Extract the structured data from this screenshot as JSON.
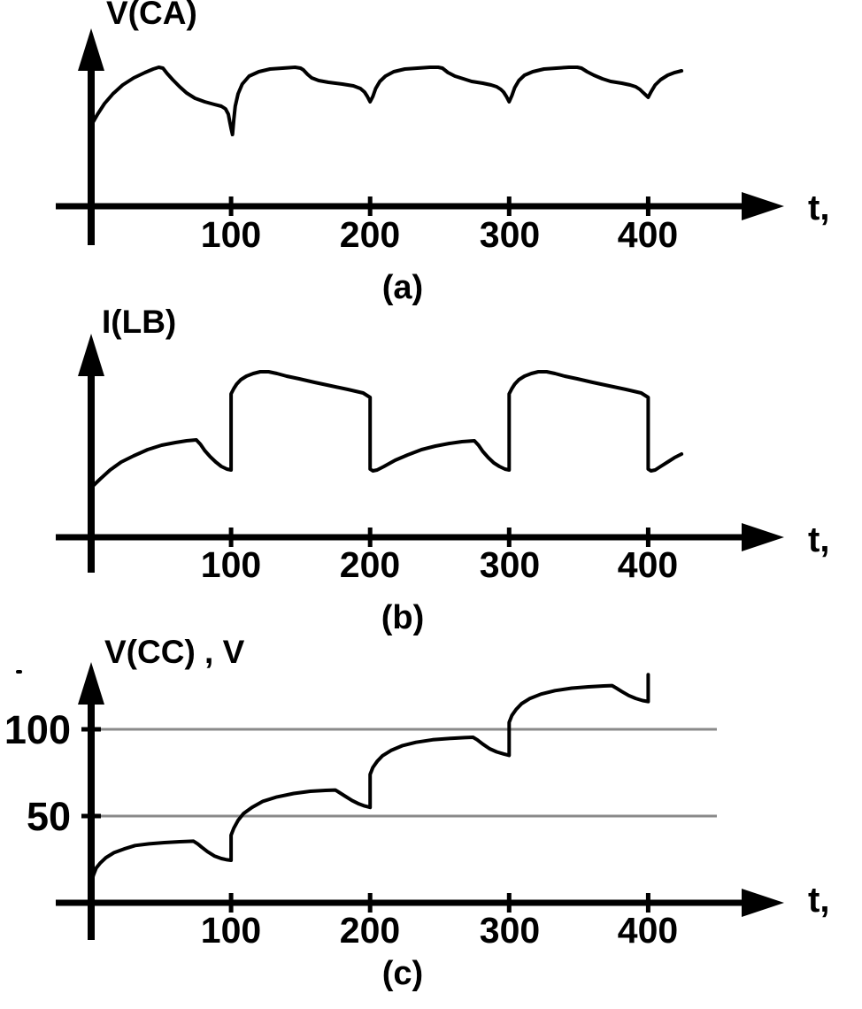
{
  "figure": {
    "background": "#ffffff",
    "line_color": "#000000",
    "grid_color": "#8a8a8a"
  },
  "chart_data": [
    {
      "id": "a",
      "type": "line",
      "ylabel": "V(CA)",
      "xlabel": "t,",
      "caption": "(a)",
      "x_ticks": [
        100,
        200,
        300,
        400
      ],
      "xlim": [
        0,
        430
      ],
      "ylim": [
        0,
        170
      ],
      "y_units": "arbitrary",
      "grid": false,
      "series": [
        {
          "name": "V(CA)",
          "points": [
            [
              0,
              93
            ],
            [
              4,
              104
            ],
            [
              9,
              116
            ],
            [
              15,
              127
            ],
            [
              22,
              137
            ],
            [
              30,
              145
            ],
            [
              38,
              151
            ],
            [
              44,
              155
            ],
            [
              48,
              157
            ],
            [
              51,
              156
            ],
            [
              54,
              150
            ],
            [
              58,
              143
            ],
            [
              63,
              135
            ],
            [
              68,
              128
            ],
            [
              74,
              122
            ],
            [
              81,
              118
            ],
            [
              88,
              115
            ],
            [
              93,
              113
            ],
            [
              96,
              110
            ],
            [
              98,
              104
            ],
            [
              99,
              96
            ],
            [
              100,
              88
            ],
            [
              101,
              81
            ],
            [
              102,
              98
            ],
            [
              103,
              113
            ],
            [
              105,
              127
            ],
            [
              108,
              138
            ],
            [
              113,
              147
            ],
            [
              120,
              152
            ],
            [
              128,
              155
            ],
            [
              137,
              156
            ],
            [
              146,
              157
            ],
            [
              150,
              156
            ],
            [
              152,
              154
            ],
            [
              155,
              149
            ],
            [
              158,
              145
            ],
            [
              163,
              142
            ],
            [
              170,
              140
            ],
            [
              180,
              138
            ],
            [
              188,
              136
            ],
            [
              193,
              133
            ],
            [
              196,
              129
            ],
            [
              198,
              124
            ],
            [
              200,
              118
            ],
            [
              202,
              124
            ],
            [
              204,
              133
            ],
            [
              207,
              141
            ],
            [
              211,
              147
            ],
            [
              217,
              152
            ],
            [
              225,
              155
            ],
            [
              234,
              156
            ],
            [
              243,
              157
            ],
            [
              249,
              157
            ],
            [
              252,
              156
            ],
            [
              256,
              151
            ],
            [
              261,
              147
            ],
            [
              267,
              144
            ],
            [
              273,
              141
            ],
            [
              281,
              139
            ],
            [
              287,
              137
            ],
            [
              291,
              135
            ],
            [
              294,
              132
            ],
            [
              296,
              129
            ],
            [
              298,
              124
            ],
            [
              300,
              118
            ],
            [
              302,
              125
            ],
            [
              304,
              134
            ],
            [
              307,
              142
            ],
            [
              311,
              148
            ],
            [
              317,
              152
            ],
            [
              325,
              155
            ],
            [
              334,
              156
            ],
            [
              343,
              157
            ],
            [
              349,
              157
            ],
            [
              352,
              156
            ],
            [
              356,
              152
            ],
            [
              361,
              148
            ],
            [
              367,
              144
            ],
            [
              373,
              141
            ],
            [
              381,
              139
            ],
            [
              387,
              137
            ],
            [
              391,
              135
            ],
            [
              394,
              132
            ],
            [
              396,
              129
            ],
            [
              398,
              126
            ],
            [
              400,
              123
            ],
            [
              402,
              129
            ],
            [
              405,
              137
            ],
            [
              409,
              143
            ],
            [
              414,
              148
            ],
            [
              419,
              151
            ],
            [
              424,
              153
            ]
          ]
        }
      ]
    },
    {
      "id": "b",
      "type": "line",
      "ylabel": "I(LB)",
      "xlabel": "t,",
      "caption": "(b)",
      "x_ticks": [
        100,
        200,
        300,
        400
      ],
      "xlim": [
        0,
        430
      ],
      "ylim": [
        0,
        200
      ],
      "y_units": "arbitrary",
      "grid": false,
      "series": [
        {
          "name": "I(LB)",
          "points": [
            [
              0,
              57
            ],
            [
              6,
              66
            ],
            [
              13,
              76
            ],
            [
              21,
              85
            ],
            [
              30,
              92
            ],
            [
              40,
              99
            ],
            [
              50,
              104
            ],
            [
              60,
              107
            ],
            [
              68,
              109
            ],
            [
              75,
              110
            ],
            [
              78,
              105
            ],
            [
              81,
              98
            ],
            [
              85,
              91
            ],
            [
              89,
              85
            ],
            [
              93,
              80
            ],
            [
              97,
              77
            ],
            [
              100,
              76
            ],
            [
              100,
              162
            ],
            [
              102,
              168
            ],
            [
              104,
              173
            ],
            [
              107,
              178
            ],
            [
              111,
              182
            ],
            [
              116,
              185
            ],
            [
              121,
              187
            ],
            [
              127,
              187
            ],
            [
              133,
              185
            ],
            [
              140,
              182
            ],
            [
              149,
              179
            ],
            [
              160,
              175
            ],
            [
              172,
              171
            ],
            [
              184,
              167
            ],
            [
              195,
              163
            ],
            [
              199,
              159
            ],
            [
              200,
              158
            ],
            [
              200,
              77
            ],
            [
              202,
              75
            ],
            [
              205,
              76
            ],
            [
              210,
              80
            ],
            [
              218,
              87
            ],
            [
              227,
              93
            ],
            [
              237,
              99
            ],
            [
              247,
              103
            ],
            [
              257,
              106
            ],
            [
              266,
              108
            ],
            [
              275,
              109
            ],
            [
              278,
              104
            ],
            [
              281,
              97
            ],
            [
              285,
              90
            ],
            [
              289,
              84
            ],
            [
              293,
              80
            ],
            [
              297,
              77
            ],
            [
              300,
              76
            ],
            [
              300,
              162
            ],
            [
              302,
              168
            ],
            [
              304,
              173
            ],
            [
              307,
              178
            ],
            [
              311,
              182
            ],
            [
              316,
              185
            ],
            [
              321,
              187
            ],
            [
              327,
              187
            ],
            [
              333,
              185
            ],
            [
              340,
              182
            ],
            [
              349,
              179
            ],
            [
              360,
              175
            ],
            [
              372,
              171
            ],
            [
              384,
              167
            ],
            [
              395,
              163
            ],
            [
              399,
              159
            ],
            [
              400,
              158
            ],
            [
              400,
              77
            ],
            [
              402,
              75
            ],
            [
              405,
              76
            ],
            [
              409,
              80
            ],
            [
              414,
              85
            ],
            [
              419,
              90
            ],
            [
              424,
              94
            ]
          ]
        }
      ]
    },
    {
      "id": "c",
      "type": "line",
      "ylabel": "V(CC) , V",
      "xlabel": "t,",
      "caption": "(c)",
      "x_ticks": [
        100,
        200,
        300,
        400
      ],
      "y_ticks": [
        100,
        50
      ],
      "y_gridlines": [
        100,
        50
      ],
      "xlim": [
        0,
        430
      ],
      "ylim": [
        0,
        135
      ],
      "y_units": "V",
      "grid": true,
      "series": [
        {
          "name": "V(CC)",
          "points": [
            [
              0,
              13
            ],
            [
              1,
              16
            ],
            [
              3,
              20
            ],
            [
              6,
              23
            ],
            [
              10,
              26
            ],
            [
              16,
              29
            ],
            [
              23,
              31
            ],
            [
              31,
              33
            ],
            [
              41,
              34
            ],
            [
              52,
              34.7
            ],
            [
              63,
              35.2
            ],
            [
              73,
              35.5
            ],
            [
              76,
              34
            ],
            [
              79,
              32
            ],
            [
              83,
              29.5
            ],
            [
              88,
              27
            ],
            [
              93,
              25.5
            ],
            [
              97,
              24.8
            ],
            [
              100,
              24.5
            ],
            [
              100,
              39
            ],
            [
              102,
              43
            ],
            [
              105,
              47.5
            ],
            [
              109,
              51.5
            ],
            [
              115,
              55
            ],
            [
              123,
              58.5
            ],
            [
              133,
              61
            ],
            [
              145,
              63
            ],
            [
              157,
              64.3
            ],
            [
              168,
              64.8
            ],
            [
              175,
              65
            ],
            [
              178,
              63.5
            ],
            [
              182,
              61.5
            ],
            [
              187,
              59
            ],
            [
              192,
              57
            ],
            [
              196,
              55.8
            ],
            [
              200,
              55
            ],
            [
              200,
              74
            ],
            [
              202,
              78
            ],
            [
              205,
              81.5
            ],
            [
              209,
              84.8
            ],
            [
              215,
              87.8
            ],
            [
              223,
              90.5
            ],
            [
              233,
              92.5
            ],
            [
              245,
              94
            ],
            [
              258,
              94.8
            ],
            [
              268,
              95.2
            ],
            [
              274,
              95.4
            ],
            [
              277,
              94
            ],
            [
              281,
              91.5
            ],
            [
              286,
              88.8
            ],
            [
              291,
              87
            ],
            [
              296,
              85.8
            ],
            [
              300,
              85
            ],
            [
              300,
              104
            ],
            [
              302,
              108
            ],
            [
              305,
              111.5
            ],
            [
              309,
              114.8
            ],
            [
              315,
              117.8
            ],
            [
              323,
              120.3
            ],
            [
              333,
              122.3
            ],
            [
              345,
              123.7
            ],
            [
              357,
              124.5
            ],
            [
              368,
              125
            ],
            [
              374,
              125.2
            ],
            [
              377,
              123.8
            ],
            [
              381,
              121.8
            ],
            [
              386,
              119.5
            ],
            [
              391,
              117.8
            ],
            [
              396,
              116.6
            ],
            [
              400,
              116
            ],
            [
              400,
              131.5
            ]
          ]
        }
      ]
    }
  ]
}
